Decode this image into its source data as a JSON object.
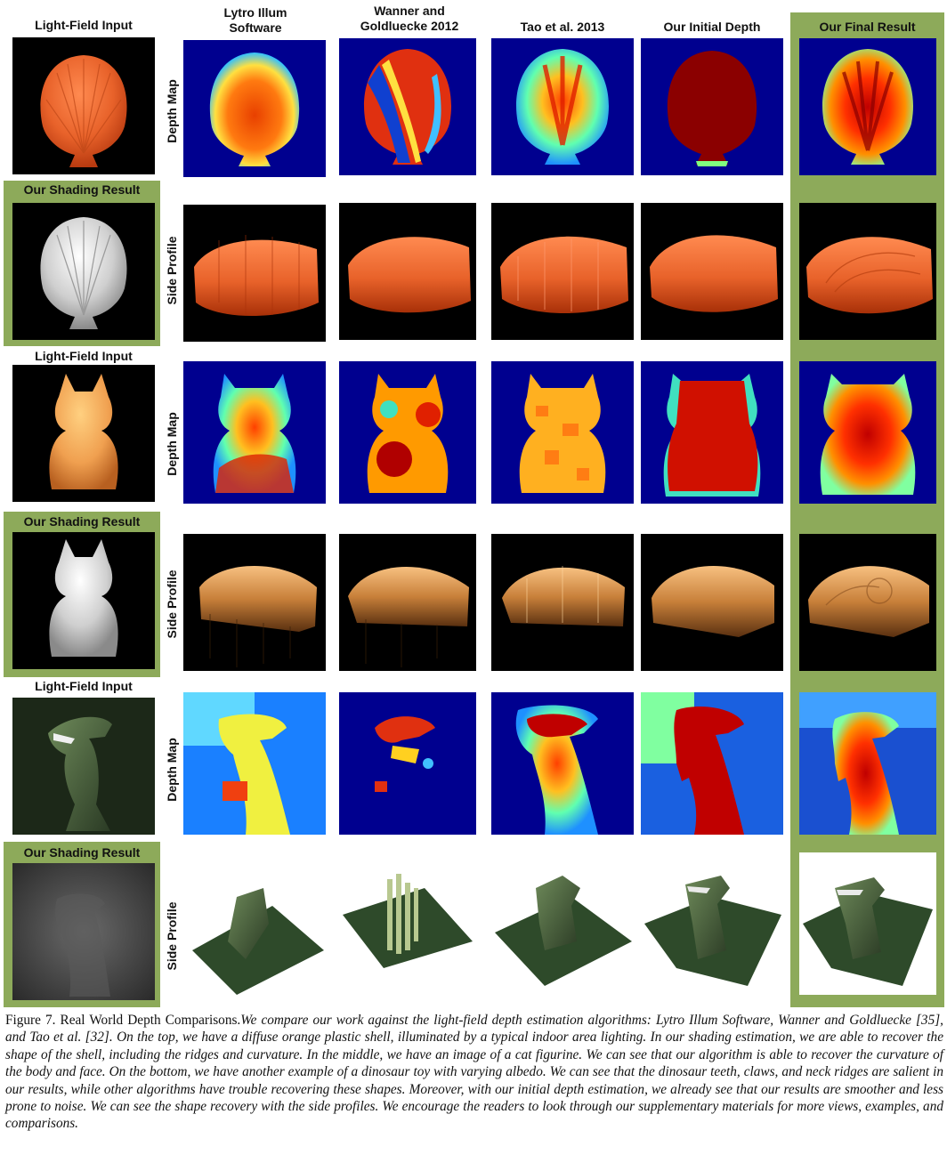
{
  "headers": {
    "input": "Light-Field Input",
    "lytro": "Lytro Illum Software",
    "wanner": "Wanner and Goldluecke 2012",
    "tao": "Tao et al. 2013",
    "initial": "Our Initial Depth",
    "final": "Our Final Result"
  },
  "labels": {
    "light_field_input": "Light-Field Input",
    "shading_result": "Our Shading Result",
    "depth_map": "Depth Map",
    "side_profile": "Side Profile"
  },
  "caption": {
    "figure": "Figure 7. Real World Depth Comparisons.",
    "text": "We compare our work against the light-field depth estimation algorithms: Lytro Illum Software, Wanner and Goldluecke [35], and Tao et al. [32]. On the top, we have a diffuse orange plastic shell, illuminated by a typical indoor area lighting. In our shading estimation, we are able to recover the shape of the shell, including the ridges and curvature. In the middle, we have an image of a cat figurine. We can see that our algorithm is able to recover the curvature of the body and face. On the bottom, we have another example of a dinosaur toy with varying albedo. We can see that the dinosaur teeth, claws, and neck ridges are salient in our results, while other algorithms have trouble recovering these shapes. Moreover, with our initial depth estimation, we already see that our results are smoother and less prone to noise. We can see the shape recovery with the side profiles. We encourage the readers to look through our supplementary materials for more views, examples, and comparisons."
  },
  "colors": {
    "panel_green": "#8daa5a",
    "depth_background": "#00008f",
    "shell_orange": "#e8622a"
  }
}
